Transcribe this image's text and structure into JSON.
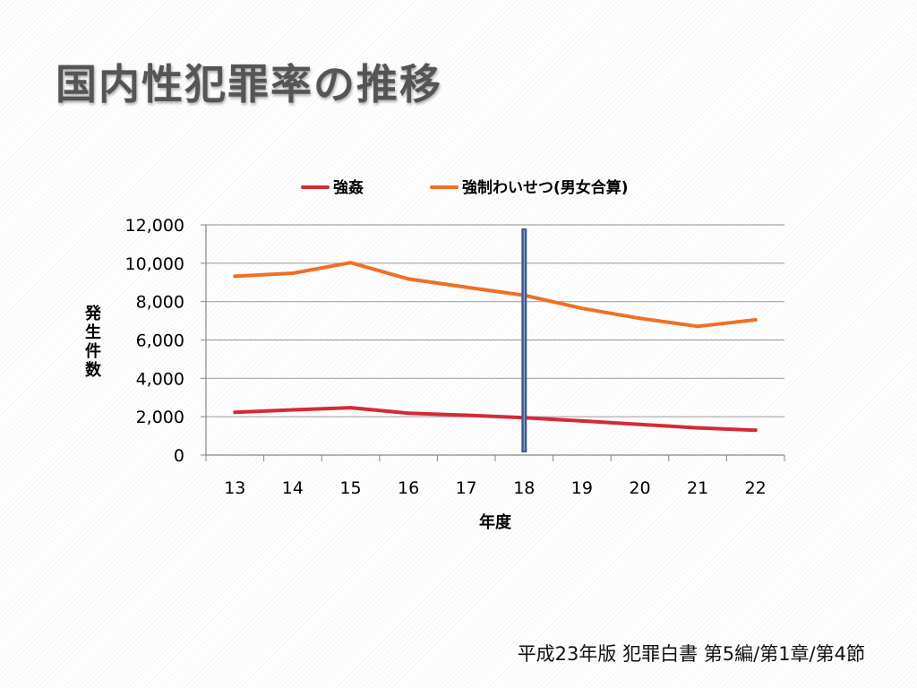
{
  "slide": {
    "title": "国内性犯罪率の推移",
    "source": "平成23年版 犯罪白書 第5編/第1章/第4節"
  },
  "chart_data": {
    "type": "line",
    "title": "",
    "xlabel": "年度",
    "ylabel": "発生件数",
    "categories": [
      "13",
      "14",
      "15",
      "16",
      "17",
      "18",
      "19",
      "20",
      "21",
      "22"
    ],
    "ylim": [
      0,
      12000
    ],
    "yticks": [
      0,
      2000,
      4000,
      6000,
      8000,
      10000,
      12000
    ],
    "ytick_labels": [
      "0",
      "2,000",
      "4,000",
      "6,000",
      "8,000",
      "10,000",
      "12,000"
    ],
    "grid": true,
    "legend_position": "top",
    "marker_category": "18",
    "series": [
      {
        "name": "強姦",
        "color": "#d42a36",
        "values": [
          2230,
          2360,
          2470,
          2180,
          2080,
          1950,
          1780,
          1600,
          1420,
          1300
        ]
      },
      {
        "name": "強制わいせつ(男女合算)",
        "color": "#ee7024",
        "values": [
          9320,
          9480,
          10030,
          9180,
          8750,
          8330,
          7650,
          7130,
          6710,
          7050
        ]
      }
    ],
    "colors": {
      "grid": "#a6a6a6",
      "axis": "#868686",
      "marker": "#3d5a92"
    }
  }
}
